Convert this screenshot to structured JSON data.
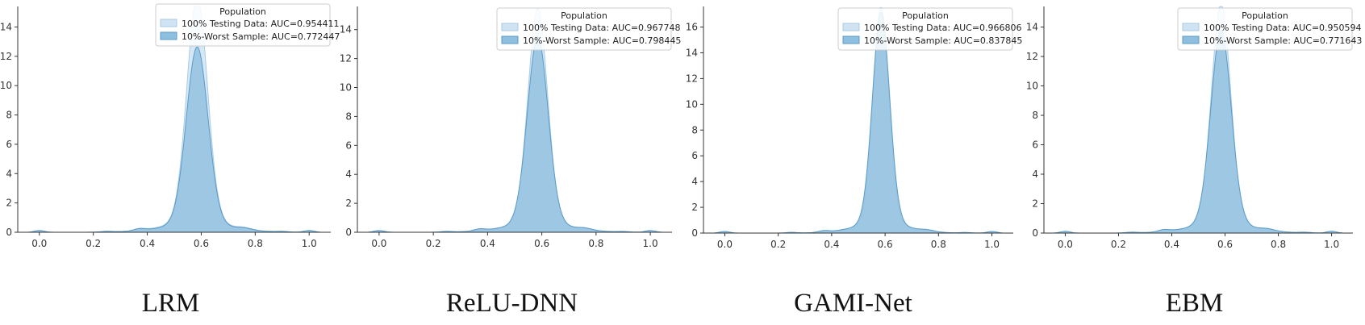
{
  "chart_data": [
    {
      "type": "area",
      "title": "",
      "caption": "LRM",
      "xlim": [
        -0.08,
        1.08
      ],
      "ylim": [
        0,
        15.4
      ],
      "xticks": [
        0.0,
        0.2,
        0.4,
        0.6,
        0.8,
        1.0
      ],
      "yticks": [
        0,
        2,
        4,
        6,
        8,
        10,
        12,
        14
      ],
      "legend": {
        "title": "Population",
        "position": "top-right"
      },
      "series": [
        {
          "name": "100% Testing Data: AUC=0.954411",
          "color": "#cfe3f3",
          "peak_x": 0.585,
          "peak_y": 15.4,
          "width": 0.038
        },
        {
          "name": "10%-Worst Sample: AUC=0.772447",
          "color": "#8fbfdf",
          "peak_x": 0.585,
          "peak_y": 12.1,
          "width": 0.04
        }
      ]
    },
    {
      "type": "area",
      "title": "",
      "caption": "ReLU-DNN",
      "xlim": [
        -0.08,
        1.08
      ],
      "ylim": [
        0,
        15.6
      ],
      "xticks": [
        0.0,
        0.2,
        0.4,
        0.6,
        0.8,
        1.0
      ],
      "yticks": [
        0,
        2,
        4,
        6,
        8,
        10,
        12,
        14
      ],
      "legend": {
        "title": "Population",
        "position": "top-right"
      },
      "series": [
        {
          "name": "100% Testing Data: AUC=0.967748",
          "color": "#cfe3f3",
          "peak_x": 0.585,
          "peak_y": 14.8,
          "width": 0.036
        },
        {
          "name": "10%-Worst Sample: AUC=0.798445",
          "color": "#8fbfdf",
          "peak_x": 0.585,
          "peak_y": 12.9,
          "width": 0.038
        }
      ]
    },
    {
      "type": "area",
      "title": "",
      "caption": "GAMI-Net",
      "xlim": [
        -0.08,
        1.08
      ],
      "ylim": [
        0,
        17.6
      ],
      "xticks": [
        0.0,
        0.2,
        0.4,
        0.6,
        0.8,
        1.0
      ],
      "yticks": [
        0,
        2,
        4,
        6,
        8,
        10,
        12,
        14,
        16
      ],
      "legend": {
        "title": "Population",
        "position": "top-right"
      },
      "series": [
        {
          "name": "100% Testing Data: AUC=0.966806",
          "color": "#cfe3f3",
          "peak_x": 0.585,
          "peak_y": 16.8,
          "width": 0.03
        },
        {
          "name": "10%-Worst Sample: AUC=0.837845",
          "color": "#8fbfdf",
          "peak_x": 0.585,
          "peak_y": 16.4,
          "width": 0.032
        }
      ]
    },
    {
      "type": "area",
      "title": "",
      "caption": "EBM",
      "xlim": [
        -0.08,
        1.08
      ],
      "ylim": [
        0,
        15.4
      ],
      "xticks": [
        0.0,
        0.2,
        0.4,
        0.6,
        0.8,
        1.0
      ],
      "yticks": [
        0,
        2,
        4,
        6,
        8,
        10,
        12,
        14
      ],
      "legend": {
        "title": "Population",
        "position": "top-right"
      },
      "series": [
        {
          "name": "100% Testing Data: AUC=0.950594",
          "color": "#cfe3f3",
          "peak_x": 0.585,
          "peak_y": 14.9,
          "width": 0.036
        },
        {
          "name": "10%-Worst Sample: AUC=0.771643",
          "color": "#8fbfdf",
          "peak_x": 0.585,
          "peak_y": 13.2,
          "width": 0.038
        }
      ]
    }
  ]
}
